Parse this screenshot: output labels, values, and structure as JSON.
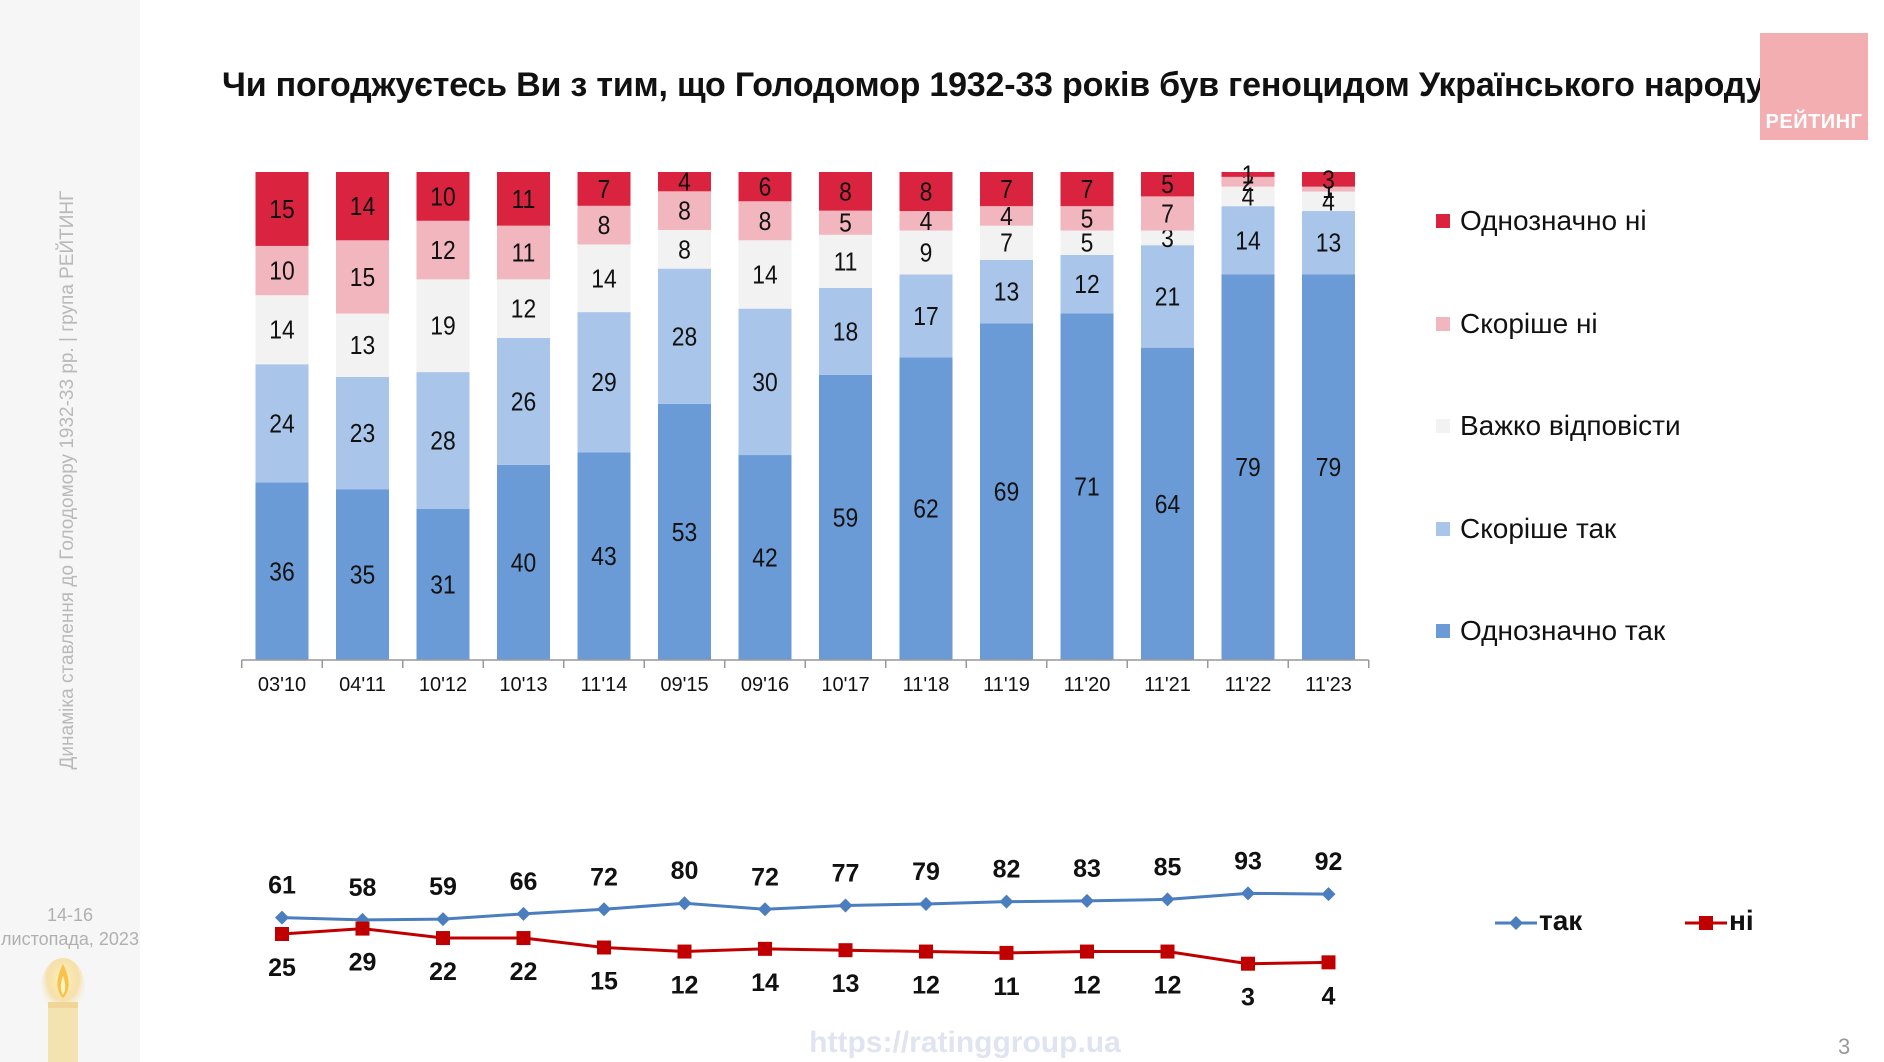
{
  "title": "Чи погоджуєтесь Ви з тим, що Голодомор 1932-33 років був геноцидом Українського народу?",
  "sidebar": {
    "caption": "Динаміка ставлення до Голодомору 1932-33 рр. | група РЕЙТИНГ",
    "date_line1": "14-16",
    "date_line2": "листопада, 2023"
  },
  "logo_text": "РЕЙТИНГ",
  "footer_url": "https://ratinggroup.ua",
  "page_number": "3",
  "chart_data": [
    {
      "type": "bar",
      "stacked": true,
      "categories": [
        "03'10",
        "04'11",
        "10'12",
        "10'13",
        "11'14",
        "09'15",
        "09'16",
        "10'17",
        "11'18",
        "11'19",
        "11'20",
        "11'21",
        "11'22",
        "11'23"
      ],
      "series": [
        {
          "name": "Однозначно так",
          "color": "#6b9bd6",
          "values": [
            36,
            35,
            31,
            40,
            43,
            53,
            42,
            59,
            62,
            69,
            71,
            64,
            79,
            79
          ]
        },
        {
          "name": "Скоріше так",
          "color": "#a9c5ea",
          "values": [
            24,
            23,
            28,
            26,
            29,
            28,
            30,
            18,
            17,
            13,
            12,
            21,
            14,
            13
          ]
        },
        {
          "name": "Важко відповісти",
          "color": "#f2f2f2",
          "values": [
            14,
            13,
            19,
            12,
            14,
            8,
            14,
            11,
            9,
            7,
            5,
            3,
            4,
            4
          ]
        },
        {
          "name": "Скоріше ні",
          "color": "#f2b6be",
          "values": [
            10,
            15,
            12,
            11,
            8,
            8,
            8,
            5,
            4,
            4,
            5,
            7,
            2,
            1
          ]
        },
        {
          "name": "Однозначно ні",
          "color": "#d9233f",
          "values": [
            15,
            14,
            10,
            11,
            7,
            4,
            6,
            8,
            8,
            7,
            7,
            5,
            1,
            3
          ]
        }
      ],
      "legend_order": [
        "Однозначно ні",
        "Скоріше ні",
        "Важко відповісти",
        "Скоріше так",
        "Однозначно так"
      ],
      "legend_position": "right"
    },
    {
      "type": "line",
      "categories": [
        "03'10",
        "04'11",
        "10'12",
        "10'13",
        "11'14",
        "09'15",
        "09'16",
        "10'17",
        "11'18",
        "11'19",
        "11'20",
        "11'21",
        "11'22",
        "11'23"
      ],
      "series": [
        {
          "name": "так",
          "color": "#4a7ebf",
          "marker": "diamond",
          "values": [
            61,
            58,
            59,
            66,
            72,
            80,
            72,
            77,
            79,
            82,
            83,
            85,
            93,
            92
          ]
        },
        {
          "name": "ні",
          "color": "#c00000",
          "marker": "square",
          "values": [
            25,
            29,
            22,
            22,
            15,
            12,
            14,
            13,
            12,
            11,
            12,
            12,
            3,
            4
          ]
        }
      ],
      "legend_position": "bottom-right"
    }
  ]
}
